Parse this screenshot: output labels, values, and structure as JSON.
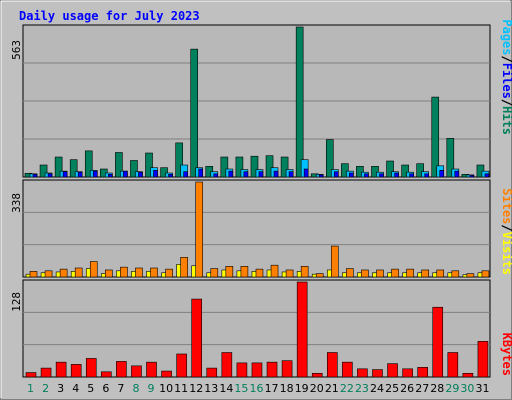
{
  "title": "Daily usage for July 2023",
  "legend": {
    "hits": "Hits",
    "files": "Files",
    "pages": "Pages",
    "visits": "Visits",
    "sites": "Sites",
    "kbytes": "KBytes",
    "separator": "/"
  },
  "colors": {
    "background": "#c0c0c0",
    "plot_bg": "#b8b8b8",
    "title": "#0000ff",
    "hits": "#00805c",
    "files": "#0000ff",
    "pages": "#00c0ff",
    "visits": "#ffff00",
    "sites": "#ff8000",
    "kbytes": "#ff0000",
    "weekend": "#00805c",
    "weekday": "#000000"
  },
  "chart_data": [
    {
      "type": "bar",
      "panel": "hits-files-pages",
      "ymax_label": "563",
      "ylim": [
        0,
        563
      ],
      "categories": [
        "1",
        "2",
        "3",
        "4",
        "5",
        "6",
        "7",
        "8",
        "9",
        "10",
        "11",
        "12",
        "13",
        "14",
        "15",
        "16",
        "17",
        "18",
        "19",
        "20",
        "21",
        "22",
        "23",
        "24",
        "25",
        "26",
        "27",
        "28",
        "29",
        "30",
        "31"
      ],
      "weekend_days": [
        "1",
        "2",
        "8",
        "9",
        "15",
        "16",
        "22",
        "23",
        "29",
        "30"
      ],
      "series": [
        {
          "name": "Hits",
          "values": [
            14,
            45,
            75,
            65,
            98,
            30,
            92,
            62,
            90,
            35,
            128,
            480,
            40,
            75,
            75,
            78,
            80,
            75,
            563,
            12,
            140,
            50,
            40,
            40,
            60,
            45,
            50,
            300,
            145,
            10,
            45
          ]
        },
        {
          "name": "Files",
          "values": [
            10,
            12,
            20,
            18,
            22,
            10,
            22,
            18,
            25,
            10,
            20,
            30,
            12,
            22,
            20,
            20,
            22,
            20,
            30,
            8,
            20,
            15,
            12,
            12,
            15,
            12,
            12,
            25,
            22,
            6,
            12
          ]
        },
        {
          "name": "Pages",
          "values": [
            12,
            15,
            22,
            20,
            25,
            15,
            22,
            20,
            35,
            15,
            45,
            35,
            20,
            30,
            28,
            28,
            35,
            28,
            65,
            10,
            28,
            22,
            18,
            18,
            20,
            18,
            20,
            42,
            30,
            8,
            22
          ]
        }
      ]
    },
    {
      "type": "bar",
      "panel": "visits-sites",
      "ymax_label": "338",
      "ylim": [
        0,
        338
      ],
      "categories": [
        "1",
        "2",
        "3",
        "4",
        "5",
        "6",
        "7",
        "8",
        "9",
        "10",
        "11",
        "12",
        "13",
        "14",
        "15",
        "16",
        "17",
        "18",
        "19",
        "20",
        "21",
        "22",
        "23",
        "24",
        "25",
        "26",
        "27",
        "28",
        "29",
        "30",
        "31"
      ],
      "series": [
        {
          "name": "Visits",
          "values": [
            10,
            15,
            18,
            20,
            30,
            12,
            22,
            20,
            20,
            15,
            45,
            40,
            15,
            25,
            22,
            20,
            25,
            18,
            20,
            10,
            25,
            15,
            15,
            15,
            15,
            15,
            15,
            15,
            15,
            8,
            15
          ]
        },
        {
          "name": "Sites",
          "values": [
            20,
            22,
            28,
            32,
            55,
            25,
            35,
            32,
            32,
            28,
            70,
            338,
            30,
            38,
            38,
            28,
            42,
            25,
            38,
            12,
            110,
            30,
            25,
            25,
            28,
            28,
            25,
            25,
            22,
            12,
            22
          ]
        }
      ]
    },
    {
      "type": "bar",
      "panel": "kbytes",
      "ymax_label": "128",
      "ylim": [
        0,
        128
      ],
      "categories": [
        "1",
        "2",
        "3",
        "4",
        "5",
        "6",
        "7",
        "8",
        "9",
        "10",
        "11",
        "12",
        "13",
        "14",
        "15",
        "16",
        "17",
        "18",
        "19",
        "20",
        "21",
        "22",
        "23",
        "24",
        "25",
        "26",
        "27",
        "28",
        "29",
        "30",
        "31"
      ],
      "series": [
        {
          "name": "KBytes",
          "values": [
            6,
            12,
            20,
            17,
            25,
            7,
            21,
            15,
            20,
            8,
            31,
            105,
            12,
            33,
            19,
            19,
            20,
            22,
            128,
            5,
            33,
            20,
            11,
            10,
            18,
            11,
            13,
            94,
            33,
            5,
            48
          ]
        }
      ]
    }
  ],
  "x_labels": [
    "1",
    "2",
    "3",
    "4",
    "5",
    "6",
    "7",
    "8",
    "9",
    "10",
    "11",
    "12",
    "13",
    "14",
    "15",
    "16",
    "17",
    "18",
    "19",
    "20",
    "21",
    "22",
    "23",
    "24",
    "25",
    "26",
    "27",
    "28",
    "29",
    "30",
    "31"
  ]
}
